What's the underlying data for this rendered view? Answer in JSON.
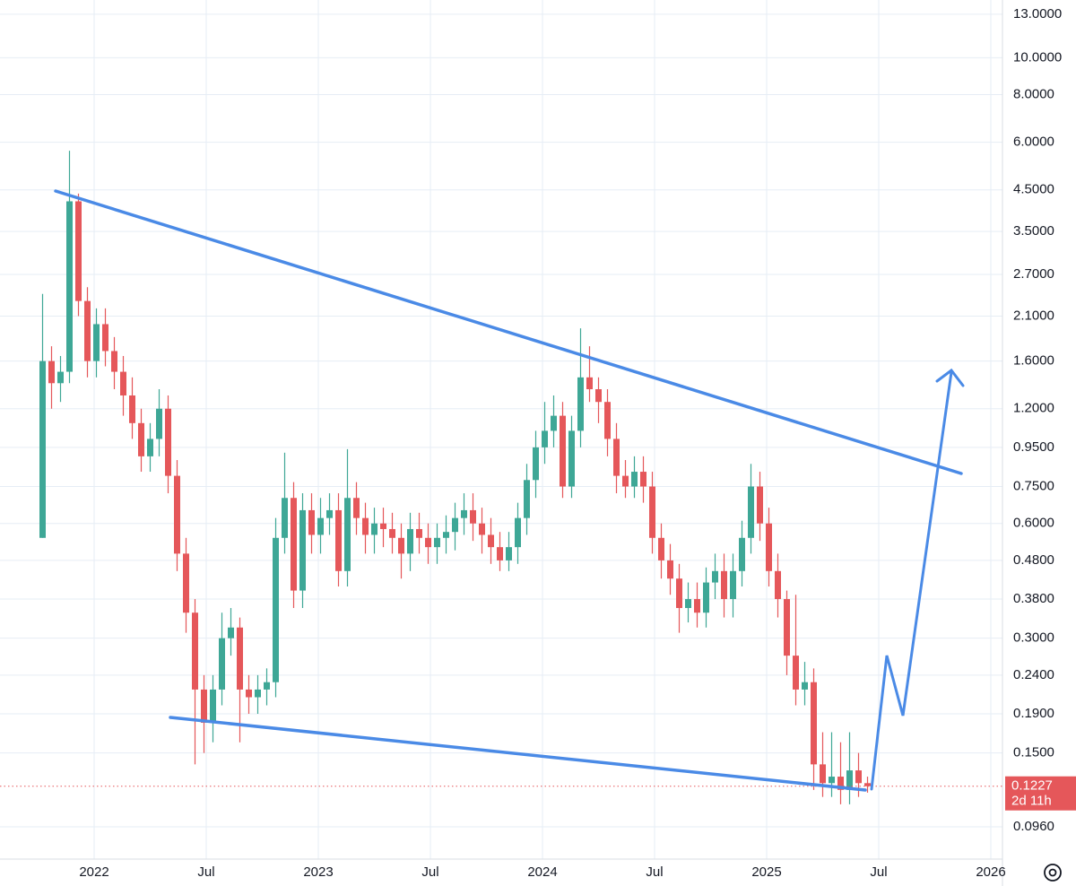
{
  "chart_data": {
    "type": "candlestick",
    "log_scale": true,
    "grid": true,
    "up_color": "#3ea796",
    "down_color": "#e5575a",
    "countdown": "2d 11h",
    "x": [
      2021.77,
      2021.81,
      2021.85,
      2021.89,
      2021.93,
      2021.97,
      2022.01,
      2022.05,
      2022.09,
      2022.13,
      2022.17,
      2022.21,
      2022.25,
      2022.29,
      2022.33,
      2022.37,
      2022.41,
      2022.45,
      2022.49,
      2022.53,
      2022.57,
      2022.61,
      2022.65,
      2022.69,
      2022.73,
      2022.77,
      2022.81,
      2022.85,
      2022.89,
      2022.93,
      2022.97,
      2023.01,
      2023.05,
      2023.09,
      2023.13,
      2023.17,
      2023.21,
      2023.25,
      2023.29,
      2023.33,
      2023.37,
      2023.41,
      2023.45,
      2023.49,
      2023.53,
      2023.57,
      2023.61,
      2023.65,
      2023.69,
      2023.73,
      2023.77,
      2023.81,
      2023.85,
      2023.89,
      2023.93,
      2023.97,
      2024.01,
      2024.05,
      2024.09,
      2024.13,
      2024.17,
      2024.21,
      2024.25,
      2024.29,
      2024.33,
      2024.37,
      2024.41,
      2024.45,
      2024.49,
      2024.53,
      2024.57,
      2024.61,
      2024.65,
      2024.69,
      2024.73,
      2024.77,
      2024.81,
      2024.85,
      2024.89,
      2024.93,
      2024.97,
      2025.01,
      2025.05,
      2025.09,
      2025.13,
      2025.17,
      2025.21,
      2025.25,
      2025.29,
      2025.33,
      2025.37,
      2025.41,
      2025.45
    ],
    "open": [
      0.55,
      1.6,
      1.4,
      1.5,
      4.2,
      2.3,
      1.6,
      2.0,
      1.7,
      1.5,
      1.3,
      1.1,
      0.9,
      1.0,
      1.2,
      0.8,
      0.5,
      0.35,
      0.22,
      0.18,
      0.22,
      0.3,
      0.32,
      0.22,
      0.21,
      0.22,
      0.23,
      0.55,
      0.7,
      0.4,
      0.65,
      0.56,
      0.62,
      0.65,
      0.45,
      0.7,
      0.62,
      0.56,
      0.6,
      0.58,
      0.55,
      0.5,
      0.58,
      0.55,
      0.52,
      0.55,
      0.57,
      0.62,
      0.65,
      0.6,
      0.56,
      0.52,
      0.48,
      0.52,
      0.62,
      0.78,
      0.95,
      1.05,
      1.15,
      0.75,
      1.05,
      1.45,
      1.35,
      1.25,
      1.0,
      0.8,
      0.75,
      0.82,
      0.75,
      0.55,
      0.48,
      0.43,
      0.36,
      0.38,
      0.35,
      0.42,
      0.45,
      0.38,
      0.45,
      0.55,
      0.75,
      0.6,
      0.45,
      0.38,
      0.27,
      0.22,
      0.23,
      0.14,
      0.125,
      0.13,
      0.12,
      0.135,
      0.125
    ],
    "high": [
      2.4,
      1.75,
      1.65,
      5.7,
      4.4,
      2.5,
      2.2,
      2.2,
      1.85,
      1.65,
      1.45,
      1.2,
      1.1,
      1.35,
      1.3,
      0.88,
      0.55,
      0.38,
      0.24,
      0.24,
      0.35,
      0.36,
      0.34,
      0.24,
      0.24,
      0.25,
      0.62,
      0.92,
      0.77,
      0.72,
      0.72,
      0.7,
      0.72,
      0.72,
      0.94,
      0.77,
      0.68,
      0.66,
      0.66,
      0.64,
      0.6,
      0.64,
      0.64,
      0.6,
      0.6,
      0.63,
      0.68,
      0.72,
      0.72,
      0.66,
      0.62,
      0.57,
      0.57,
      0.68,
      0.86,
      1.05,
      1.25,
      1.3,
      1.25,
      1.15,
      1.95,
      1.75,
      1.45,
      1.35,
      1.1,
      0.88,
      0.9,
      0.9,
      0.82,
      0.6,
      0.53,
      0.47,
      0.42,
      0.42,
      0.46,
      0.5,
      0.5,
      0.5,
      0.61,
      0.86,
      0.82,
      0.66,
      0.5,
      0.4,
      0.39,
      0.26,
      0.25,
      0.17,
      0.17,
      0.16,
      0.17,
      0.15,
      0.13
    ],
    "low": [
      0.55,
      1.2,
      1.25,
      1.4,
      2.1,
      1.45,
      1.45,
      1.55,
      1.35,
      1.15,
      1.0,
      0.82,
      0.82,
      0.9,
      0.72,
      0.45,
      0.31,
      0.14,
      0.15,
      0.16,
      0.2,
      0.27,
      0.16,
      0.19,
      0.19,
      0.2,
      0.21,
      0.5,
      0.36,
      0.36,
      0.5,
      0.5,
      0.56,
      0.41,
      0.41,
      0.56,
      0.5,
      0.5,
      0.52,
      0.5,
      0.43,
      0.45,
      0.5,
      0.47,
      0.47,
      0.5,
      0.51,
      0.56,
      0.54,
      0.5,
      0.47,
      0.45,
      0.45,
      0.47,
      0.56,
      0.7,
      0.86,
      0.95,
      0.7,
      0.7,
      0.95,
      1.25,
      1.1,
      0.9,
      0.72,
      0.7,
      0.7,
      0.68,
      0.5,
      0.43,
      0.39,
      0.31,
      0.33,
      0.32,
      0.32,
      0.38,
      0.34,
      0.34,
      0.41,
      0.5,
      0.54,
      0.41,
      0.34,
      0.24,
      0.2,
      0.2,
      0.12,
      0.115,
      0.115,
      0.11,
      0.11,
      0.115,
      0.118
    ],
    "close": [
      1.6,
      1.4,
      1.5,
      4.2,
      2.3,
      1.6,
      2.0,
      1.7,
      1.5,
      1.3,
      1.1,
      0.9,
      1.0,
      1.2,
      0.8,
      0.5,
      0.35,
      0.22,
      0.18,
      0.22,
      0.3,
      0.32,
      0.22,
      0.21,
      0.22,
      0.23,
      0.55,
      0.7,
      0.4,
      0.65,
      0.56,
      0.62,
      0.65,
      0.45,
      0.7,
      0.62,
      0.56,
      0.6,
      0.58,
      0.55,
      0.5,
      0.58,
      0.55,
      0.52,
      0.55,
      0.57,
      0.62,
      0.65,
      0.6,
      0.56,
      0.52,
      0.48,
      0.52,
      0.62,
      0.78,
      0.95,
      1.05,
      1.15,
      0.75,
      1.05,
      1.45,
      1.35,
      1.25,
      1.0,
      0.8,
      0.75,
      0.82,
      0.75,
      0.55,
      0.48,
      0.43,
      0.36,
      0.38,
      0.35,
      0.42,
      0.45,
      0.38,
      0.45,
      0.55,
      0.75,
      0.6,
      0.45,
      0.38,
      0.27,
      0.22,
      0.23,
      0.14,
      0.125,
      0.13,
      0.12,
      0.135,
      0.125,
      0.1227
    ],
    "xlim": [
      2021.58,
      2026.052
    ],
    "xticks": [
      2022,
      {
        "value": 2022.5,
        "label": "Jul"
      },
      2023,
      {
        "value": 2023.5,
        "label": "Jul"
      },
      2024,
      {
        "value": 2024.5,
        "label": "Jul"
      },
      2025,
      {
        "value": 2025.5,
        "label": "Jul"
      },
      2026
    ],
    "ylim": [
      0.079,
      14.17
    ],
    "yticks": [
      {
        "value": 13,
        "label": "13.0000"
      },
      {
        "value": 10,
        "label": "10.0000"
      },
      {
        "value": 8,
        "label": "8.0000"
      },
      {
        "value": 6,
        "label": "6.0000"
      },
      {
        "value": 4.5,
        "label": "4.5000"
      },
      {
        "value": 3.5,
        "label": "3.5000"
      },
      {
        "value": 2.7,
        "label": "2.7000"
      },
      {
        "value": 2.1,
        "label": "2.1000"
      },
      {
        "value": 1.6,
        "label": "1.6000"
      },
      {
        "value": 1.2,
        "label": "1.2000"
      },
      {
        "value": 0.95,
        "label": "0.9500"
      },
      {
        "value": 0.75,
        "label": "0.7500"
      },
      {
        "value": 0.6,
        "label": "0.6000"
      },
      {
        "value": 0.48,
        "label": "0.4800"
      },
      {
        "value": 0.38,
        "label": "0.3800"
      },
      {
        "value": 0.3,
        "label": "0.3000"
      },
      {
        "value": 0.24,
        "label": "0.2400"
      },
      {
        "value": 0.19,
        "label": "0.1900"
      },
      {
        "value": 0.15,
        "label": "0.1500"
      },
      {
        "value": 0.096,
        "label": "0.0960"
      }
    ]
  }
}
